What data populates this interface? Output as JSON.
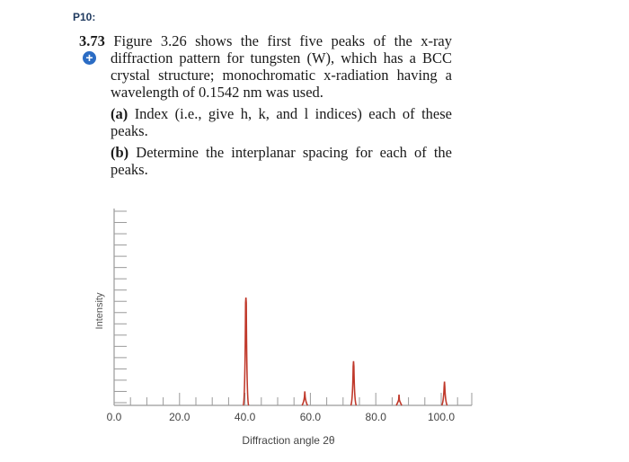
{
  "page_label": "P10:",
  "problem": {
    "number": "3.73",
    "intro": "Figure 3.26 shows the first five peaks of the x-ray diffraction pattern for tungsten (W), which has a BCC crystal structure; monochromatic x-radiation having a wavelength of 0.1542 nm was used.",
    "part_a_label": "(a)",
    "part_a_text": "Index (i.e., give h, k, and l indices) each of these peaks.",
    "part_b_label": "(b)",
    "part_b_text": "Determine the interplanar spacing for each of the peaks.",
    "icon": "plus-circle-icon",
    "icon_color": "#2b6cc4"
  },
  "chart_data": {
    "type": "line",
    "xlabel": "Diffraction angle 2θ",
    "ylabel": "Intensity",
    "xlim": [
      0,
      100
    ],
    "x_ticks": [
      "0.0",
      "20.0",
      "40.0",
      "60.0",
      "80.0",
      "100.0"
    ],
    "peaks": [
      {
        "x": 40.3,
        "intensity": 100
      },
      {
        "x": 58.3,
        "intensity": 13
      },
      {
        "x": 73.2,
        "intensity": 41
      },
      {
        "x": 87.1,
        "intensity": 10
      },
      {
        "x": 101.0,
        "intensity": 22
      }
    ],
    "line_color": "#c0392b",
    "axis_color": "#9a9a9a"
  }
}
